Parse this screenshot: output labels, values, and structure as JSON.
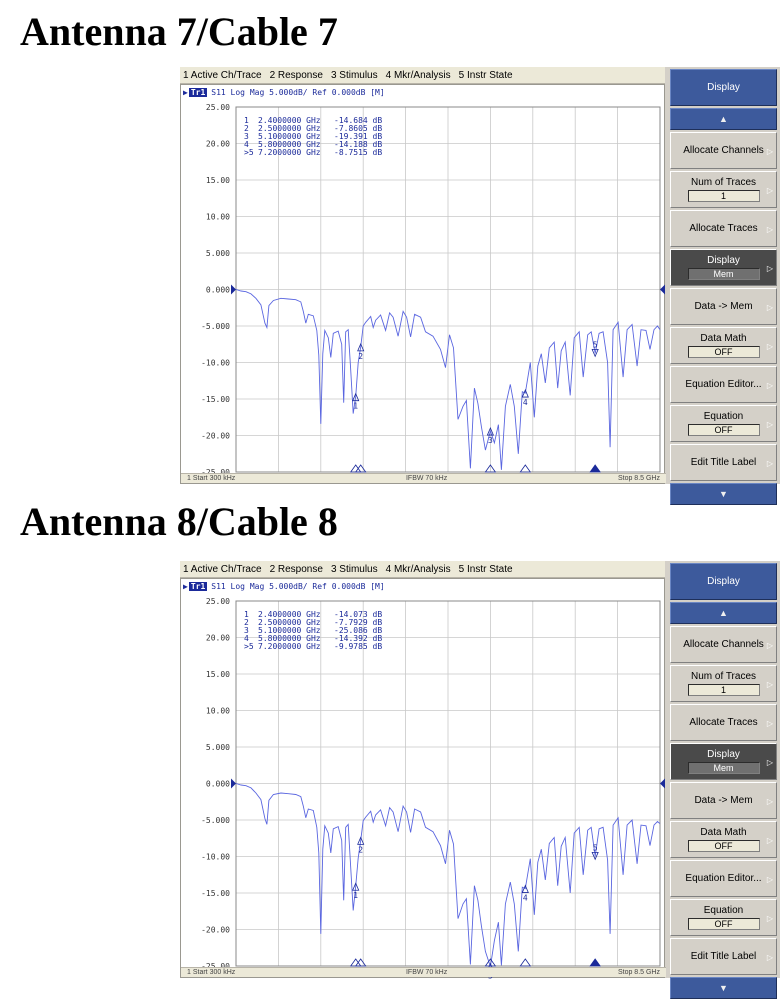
{
  "sections": [
    {
      "heading": "Antenna 7/Cable 7",
      "menu": [
        "1 Active Ch/Trace",
        "2 Response",
        "3 Stimulus",
        "4 Mkr/Analysis",
        "5 Instr State"
      ],
      "trace_header": {
        "badge": "Tr1",
        "text": "S11  Log Mag 5.000dB/ Ref 0.000dB [M]"
      },
      "markers": [
        {
          "label": "1",
          "freq": "2.4000000 GHz",
          "value": "-14.684 dB",
          "y": -14.684
        },
        {
          "label": "2",
          "freq": "2.5000000 GHz",
          "value": "-7.8605 dB",
          "y": -7.8605
        },
        {
          "label": "3",
          "freq": "5.1000000 GHz",
          "value": "-19.391 dB",
          "y": -19.391
        },
        {
          "label": "4",
          "freq": "5.8000000 GHz",
          "value": "-14.188 dB",
          "y": -14.188
        },
        {
          "label": ">5",
          "freq": "7.2000000 GHz",
          "value": "-8.7515 dB",
          "y": -8.7515
        }
      ],
      "status": {
        "start": "1 Start 300 kHz",
        "ifbw": "IFBW 70 kHz",
        "stop": "Stop 8.5 GHz"
      },
      "softkeys": [
        {
          "label": "Display",
          "kind": "title"
        },
        {
          "label": "▲",
          "kind": "nav"
        },
        {
          "label": "Allocate Channels",
          "kind": "normal"
        },
        {
          "label": "Num of Traces",
          "sub": "1",
          "kind": "normal"
        },
        {
          "label": "Allocate Traces",
          "kind": "normal"
        },
        {
          "label": "Display",
          "sub": "Mem",
          "kind": "dark"
        },
        {
          "label": "Data -> Mem",
          "kind": "normal"
        },
        {
          "label": "Data Math",
          "sub": "OFF",
          "kind": "normal"
        },
        {
          "label": "Equation Editor...",
          "kind": "normal"
        },
        {
          "label": "Equation",
          "sub": "OFF",
          "kind": "normal"
        },
        {
          "label": "Edit Title Label",
          "kind": "normal"
        },
        {
          "label": "▼",
          "kind": "nav"
        }
      ],
      "trace": [
        [
          0.0003,
          0.0
        ],
        [
          0.1,
          -0.2
        ],
        [
          0.2,
          -0.3
        ],
        [
          0.3,
          -0.6
        ],
        [
          0.4,
          -1.2
        ],
        [
          0.5,
          -2.1
        ],
        [
          0.58,
          -4.6
        ],
        [
          0.62,
          -5.2
        ],
        [
          0.66,
          -2.2
        ],
        [
          0.75,
          -1.5
        ],
        [
          0.9,
          -1.2
        ],
        [
          1.05,
          -1.3
        ],
        [
          1.2,
          -1.4
        ],
        [
          1.3,
          -1.7
        ],
        [
          1.35,
          -3.0
        ],
        [
          1.4,
          -4.6
        ],
        [
          1.45,
          -3.4
        ],
        [
          1.55,
          -3.6
        ],
        [
          1.62,
          -5.6
        ],
        [
          1.66,
          -9.0
        ],
        [
          1.7,
          -18.4
        ],
        [
          1.74,
          -8.8
        ],
        [
          1.78,
          -5.6
        ],
        [
          1.85,
          -6.6
        ],
        [
          1.9,
          -9.3
        ],
        [
          1.95,
          -6.0
        ],
        [
          2.05,
          -5.7
        ],
        [
          2.12,
          -7.5
        ],
        [
          2.16,
          -15.5
        ],
        [
          2.2,
          -5.8
        ],
        [
          2.25,
          -5.5
        ],
        [
          2.3,
          -11.0
        ],
        [
          2.35,
          -17.0
        ],
        [
          2.4,
          -14.684
        ],
        [
          2.45,
          -10.0
        ],
        [
          2.5,
          -7.8605
        ],
        [
          2.55,
          -5.0
        ],
        [
          2.6,
          -4.5
        ],
        [
          2.7,
          -3.7
        ],
        [
          2.75,
          -5.2
        ],
        [
          2.8,
          -4.2
        ],
        [
          2.9,
          -3.5
        ],
        [
          3.0,
          -5.6
        ],
        [
          3.08,
          -3.2
        ],
        [
          3.15,
          -3.8
        ],
        [
          3.25,
          -6.4
        ],
        [
          3.35,
          -3.0
        ],
        [
          3.42,
          -3.8
        ],
        [
          3.5,
          -6.5
        ],
        [
          3.58,
          -3.4
        ],
        [
          3.7,
          -3.8
        ],
        [
          3.8,
          -5.8
        ],
        [
          3.95,
          -6.4
        ],
        [
          4.1,
          -8.2
        ],
        [
          4.2,
          -10.7
        ],
        [
          4.28,
          -6.2
        ],
        [
          4.36,
          -8.0
        ],
        [
          4.45,
          -17.8
        ],
        [
          4.55,
          -16.0
        ],
        [
          4.62,
          -15.2
        ],
        [
          4.7,
          -24.5
        ],
        [
          4.78,
          -13.5
        ],
        [
          4.85,
          -15.6
        ],
        [
          4.92,
          -18.8
        ],
        [
          5.0,
          -22.0
        ],
        [
          5.1,
          -19.391
        ],
        [
          5.18,
          -21.0
        ],
        [
          5.26,
          -18.5
        ],
        [
          5.32,
          -24.7
        ],
        [
          5.4,
          -16.0
        ],
        [
          5.5,
          -13.0
        ],
        [
          5.58,
          -16.0
        ],
        [
          5.66,
          -22.5
        ],
        [
          5.74,
          -14.0
        ],
        [
          5.8,
          -14.188
        ],
        [
          5.9,
          -10.0
        ],
        [
          5.98,
          -17.5
        ],
        [
          6.05,
          -10.5
        ],
        [
          6.12,
          -8.8
        ],
        [
          6.2,
          -12.8
        ],
        [
          6.28,
          -8.0
        ],
        [
          6.38,
          -7.2
        ],
        [
          6.45,
          -13.5
        ],
        [
          6.52,
          -8.4
        ],
        [
          6.6,
          -7.2
        ],
        [
          6.7,
          -14.5
        ],
        [
          6.78,
          -6.6
        ],
        [
          6.88,
          -5.8
        ],
        [
          6.96,
          -12.0
        ],
        [
          7.05,
          -6.2
        ],
        [
          7.12,
          -5.8
        ],
        [
          7.2,
          -8.7515
        ],
        [
          7.28,
          -6.0
        ],
        [
          7.36,
          -5.8
        ],
        [
          7.45,
          -10.0
        ],
        [
          7.5,
          -21.6
        ],
        [
          7.56,
          -5.5
        ],
        [
          7.66,
          -4.5
        ],
        [
          7.76,
          -12.0
        ],
        [
          7.84,
          -5.5
        ],
        [
          7.94,
          -4.8
        ],
        [
          8.04,
          -10.5
        ],
        [
          8.12,
          -5.5
        ],
        [
          8.22,
          -5.6
        ],
        [
          8.3,
          -8.2
        ],
        [
          8.38,
          -5.5
        ],
        [
          8.45,
          -5.0
        ],
        [
          8.5,
          -5.5
        ]
      ]
    },
    {
      "heading": "Antenna 8/Cable 8",
      "menu": [
        "1 Active Ch/Trace",
        "2 Response",
        "3 Stimulus",
        "4 Mkr/Analysis",
        "5 Instr State"
      ],
      "trace_header": {
        "badge": "Tr1",
        "text": "S11  Log Mag 5.000dB/ Ref 0.000dB [M]"
      },
      "markers": [
        {
          "label": "1",
          "freq": "2.4000000 GHz",
          "value": "-14.073 dB",
          "y": -14.073
        },
        {
          "label": "2",
          "freq": "2.5000000 GHz",
          "value": "-7.7929 dB",
          "y": -7.7929
        },
        {
          "label": "3",
          "freq": "5.1000000 GHz",
          "value": "-25.086 dB",
          "y": -25.086
        },
        {
          "label": "4",
          "freq": "5.8000000 GHz",
          "value": "-14.392 dB",
          "y": -14.392
        },
        {
          "label": ">5",
          "freq": "7.2000000 GHz",
          "value": "-9.9785 dB",
          "y": -9.9785
        }
      ],
      "status": {
        "start": "1 Start 300 kHz",
        "ifbw": "IFBW 70 kHz",
        "stop": "Stop 8.5 GHz"
      },
      "softkeys": [
        {
          "label": "Display",
          "kind": "title"
        },
        {
          "label": "▲",
          "kind": "nav"
        },
        {
          "label": "Allocate Channels",
          "kind": "normal"
        },
        {
          "label": "Num of Traces",
          "sub": "1",
          "kind": "normal"
        },
        {
          "label": "Allocate Traces",
          "kind": "normal"
        },
        {
          "label": "Display",
          "sub": "Mem",
          "kind": "dark"
        },
        {
          "label": "Data -> Mem",
          "kind": "normal"
        },
        {
          "label": "Data Math",
          "sub": "OFF",
          "kind": "normal"
        },
        {
          "label": "Equation Editor...",
          "kind": "normal"
        },
        {
          "label": "Equation",
          "sub": "OFF",
          "kind": "normal"
        },
        {
          "label": "Edit Title Label",
          "kind": "normal"
        },
        {
          "label": "▼",
          "kind": "nav"
        }
      ],
      "trace": [
        [
          0.0003,
          0.0
        ],
        [
          0.1,
          -0.2
        ],
        [
          0.2,
          -0.3
        ],
        [
          0.3,
          -0.6
        ],
        [
          0.4,
          -1.3
        ],
        [
          0.5,
          -2.2
        ],
        [
          0.58,
          -4.8
        ],
        [
          0.62,
          -5.6
        ],
        [
          0.66,
          -2.3
        ],
        [
          0.75,
          -1.5
        ],
        [
          0.9,
          -1.3
        ],
        [
          1.05,
          -1.4
        ],
        [
          1.2,
          -1.5
        ],
        [
          1.3,
          -1.8
        ],
        [
          1.35,
          -3.1
        ],
        [
          1.4,
          -4.7
        ],
        [
          1.45,
          -3.5
        ],
        [
          1.55,
          -3.7
        ],
        [
          1.62,
          -6.0
        ],
        [
          1.66,
          -9.5
        ],
        [
          1.7,
          -20.6
        ],
        [
          1.74,
          -9.0
        ],
        [
          1.78,
          -5.8
        ],
        [
          1.85,
          -6.8
        ],
        [
          1.9,
          -9.5
        ],
        [
          1.95,
          -6.2
        ],
        [
          2.05,
          -5.9
        ],
        [
          2.12,
          -7.8
        ],
        [
          2.16,
          -16.0
        ],
        [
          2.2,
          -6.0
        ],
        [
          2.25,
          -5.6
        ],
        [
          2.3,
          -11.5
        ],
        [
          2.35,
          -17.4
        ],
        [
          2.4,
          -14.073
        ],
        [
          2.45,
          -10.2
        ],
        [
          2.5,
          -7.7929
        ],
        [
          2.55,
          -5.1
        ],
        [
          2.6,
          -4.6
        ],
        [
          2.7,
          -3.8
        ],
        [
          2.75,
          -5.3
        ],
        [
          2.8,
          -4.3
        ],
        [
          2.9,
          -3.6
        ],
        [
          3.0,
          -5.8
        ],
        [
          3.08,
          -3.3
        ],
        [
          3.15,
          -3.9
        ],
        [
          3.25,
          -6.6
        ],
        [
          3.35,
          -3.1
        ],
        [
          3.42,
          -3.9
        ],
        [
          3.5,
          -6.7
        ],
        [
          3.58,
          -3.5
        ],
        [
          3.7,
          -3.9
        ],
        [
          3.8,
          -6.0
        ],
        [
          3.95,
          -6.6
        ],
        [
          4.1,
          -8.5
        ],
        [
          4.2,
          -11.0
        ],
        [
          4.28,
          -6.4
        ],
        [
          4.36,
          -8.3
        ],
        [
          4.45,
          -18.5
        ],
        [
          4.55,
          -16.5
        ],
        [
          4.62,
          -15.8
        ],
        [
          4.7,
          -24.8
        ],
        [
          4.78,
          -14.0
        ],
        [
          4.85,
          -16.0
        ],
        [
          4.92,
          -19.5
        ],
        [
          5.0,
          -23.0
        ],
        [
          5.1,
          -25.086
        ],
        [
          5.18,
          -21.5
        ],
        [
          5.26,
          -19.0
        ],
        [
          5.32,
          -24.9
        ],
        [
          5.4,
          -16.5
        ],
        [
          5.5,
          -13.5
        ],
        [
          5.58,
          -16.5
        ],
        [
          5.66,
          -23.0
        ],
        [
          5.74,
          -14.2
        ],
        [
          5.8,
          -14.392
        ],
        [
          5.9,
          -10.3
        ],
        [
          5.98,
          -18.0
        ],
        [
          6.05,
          -10.8
        ],
        [
          6.12,
          -9.0
        ],
        [
          6.2,
          -13.2
        ],
        [
          6.28,
          -8.2
        ],
        [
          6.38,
          -7.4
        ],
        [
          6.45,
          -14.0
        ],
        [
          6.52,
          -8.6
        ],
        [
          6.6,
          -7.4
        ],
        [
          6.7,
          -15.0
        ],
        [
          6.78,
          -6.8
        ],
        [
          6.88,
          -6.0
        ],
        [
          6.96,
          -12.5
        ],
        [
          7.05,
          -6.4
        ],
        [
          7.12,
          -6.0
        ],
        [
          7.2,
          -9.9785
        ],
        [
          7.28,
          -6.2
        ],
        [
          7.36,
          -6.0
        ],
        [
          7.45,
          -10.5
        ],
        [
          7.5,
          -20.6
        ],
        [
          7.56,
          -5.7
        ],
        [
          7.66,
          -4.7
        ],
        [
          7.76,
          -12.5
        ],
        [
          7.84,
          -5.7
        ],
        [
          7.94,
          -5.0
        ],
        [
          8.04,
          -11.0
        ],
        [
          8.12,
          -5.7
        ],
        [
          8.22,
          -5.8
        ],
        [
          8.3,
          -8.5
        ],
        [
          8.38,
          -5.7
        ],
        [
          8.45,
          -5.2
        ],
        [
          8.5,
          -5.5
        ]
      ]
    }
  ],
  "chart_data": [
    {
      "type": "line",
      "title": "Antenna 7/Cable 7",
      "xlabel": "",
      "ylabel": "",
      "xlim": [
        0.0003,
        8.5
      ],
      "ylim": [
        -25,
        25
      ],
      "yticks": [
        "25.00",
        "20.00",
        "15.00",
        "10.00",
        "5.000",
        "0.000",
        "-5.000",
        "-10.00",
        "-15.00",
        "-20.00",
        "-25.00"
      ],
      "grid": true,
      "series": [
        {
          "name": "",
          "points_ref": "sections.0.trace"
        }
      ]
    },
    {
      "type": "line",
      "title": "Antenna 8/Cable 8",
      "xlabel": "",
      "ylabel": "",
      "xlim": [
        0.0003,
        8.5
      ],
      "ylim": [
        -25,
        25
      ],
      "yticks": [
        "25.00",
        "20.00",
        "15.00",
        "10.00",
        "5.000",
        "0.000",
        "-5.000",
        "-10.00",
        "-15.00",
        "-20.00",
        "-25.00"
      ],
      "grid": true,
      "series": [
        {
          "name": "",
          "points_ref": "sections.1.trace"
        }
      ]
    }
  ],
  "colors": {
    "trace": "#5a66e0",
    "grid": "#c8c8c8",
    "text": "#1b2a9a",
    "marker_active": "#1b2a9a"
  }
}
